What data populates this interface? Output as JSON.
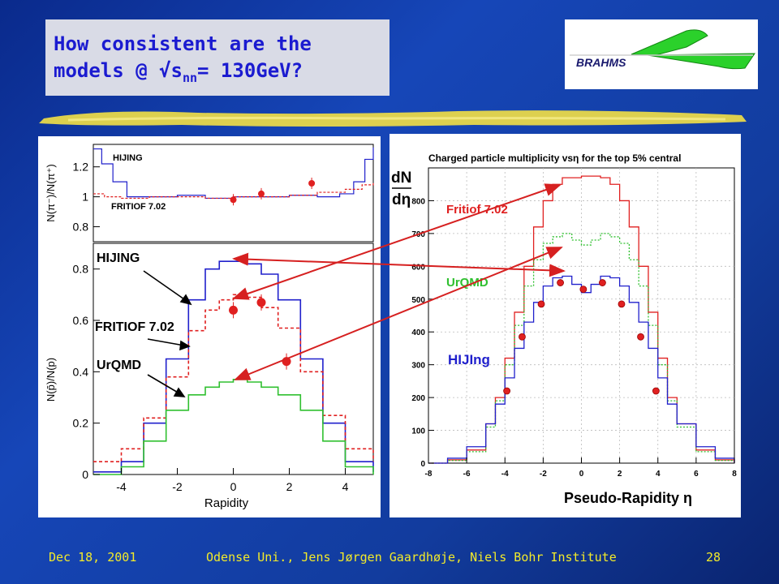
{
  "slide": {
    "title_line1": "How consistent are the",
    "title_line2_pre": "models @ ",
    "title_sqrt": "√",
    "title_s": "s",
    "title_sub": "nn",
    "title_line2_post": "= 130GeV?",
    "logo_text": "BRAHMS",
    "footer": {
      "date": "Dec 18, 2001",
      "center": "Odense Uni.,  Jens Jørgen Gaardhøje, Niels Bohr Institute",
      "page": "28"
    },
    "colors": {
      "background": "#1646b8",
      "title_text": "#1b1bd0",
      "footer_text": "#f2ea2a",
      "brush": "#e8d84a",
      "arrow": "#d62020"
    }
  },
  "chart_data": [
    {
      "type": "line",
      "panel": "left-top",
      "ylabel": "N(π⁻)/N(π⁺)",
      "xlim": [
        -5,
        5
      ],
      "ylim": [
        0.7,
        1.35
      ],
      "yticks": [
        "1.2",
        "1",
        "0.8"
      ],
      "series": [
        {
          "name": "HIJING",
          "color": "#2020cc"
        },
        {
          "name": "FRITIOF 7.02",
          "color": "#e02020"
        }
      ],
      "points": [
        {
          "x": 0,
          "y": 0.98
        },
        {
          "x": 1,
          "y": 1.02
        },
        {
          "x": 2.8,
          "y": 1.09
        }
      ]
    },
    {
      "type": "line",
      "panel": "left-bottom",
      "xlabel": "Rapidity",
      "ylabel": "N(p̄)/N(p)",
      "xlim": [
        -5,
        5
      ],
      "ylim": [
        0,
        0.9
      ],
      "xticks": [
        "-4",
        "-2",
        "0",
        "2",
        "4"
      ],
      "yticks": [
        "0",
        "0.2",
        "0.4",
        "0.6",
        "0.8"
      ],
      "series": [
        {
          "name": "HIJING",
          "color": "#2020cc",
          "x": [
            -5,
            -4,
            -3.2,
            -2.4,
            -1.6,
            -1,
            -0.5,
            0,
            0.5,
            1,
            1.6,
            2.4,
            3.2,
            4,
            5
          ],
          "y": [
            0.01,
            0.05,
            0.2,
            0.45,
            0.68,
            0.8,
            0.83,
            0.83,
            0.82,
            0.78,
            0.68,
            0.45,
            0.2,
            0.05,
            0.01
          ]
        },
        {
          "name": "FRITIOF 7.02",
          "color": "#e02020",
          "x": [
            -5,
            -4,
            -3.2,
            -2.4,
            -1.6,
            -1,
            -0.5,
            0,
            0.5,
            1,
            1.6,
            2.4,
            3.2,
            4,
            5
          ],
          "y": [
            0.05,
            0.1,
            0.22,
            0.38,
            0.56,
            0.64,
            0.68,
            0.7,
            0.69,
            0.65,
            0.57,
            0.4,
            0.23,
            0.1,
            0.05
          ]
        },
        {
          "name": "UrQMD",
          "color": "#30c030",
          "x": [
            -5,
            -4,
            -3.2,
            -2.4,
            -1.6,
            -1,
            -0.5,
            0,
            0.5,
            1,
            1.6,
            2.4,
            3.2,
            4,
            5
          ],
          "y": [
            0.0,
            0.03,
            0.13,
            0.25,
            0.31,
            0.34,
            0.36,
            0.37,
            0.36,
            0.34,
            0.31,
            0.25,
            0.13,
            0.03,
            0.0
          ]
        }
      ],
      "points": [
        {
          "x": 0,
          "y": 0.64
        },
        {
          "x": 1,
          "y": 0.67
        },
        {
          "x": 1.9,
          "y": 0.44
        }
      ]
    },
    {
      "type": "line",
      "panel": "right",
      "title": "Charged particle multiplicity vsη for the top 5% central",
      "xlabel": "Pseudo-Rapidity η",
      "ylabel_top": "dN",
      "ylabel_bottom": "dη",
      "xlim": [
        -8,
        8
      ],
      "ylim": [
        0,
        900
      ],
      "xticks": [
        "-8",
        "-6",
        "-4",
        "-2",
        "0",
        "2",
        "4",
        "6",
        "8"
      ],
      "yticks": [
        "0",
        "100",
        "200",
        "300",
        "400",
        "500",
        "600",
        "700",
        "800"
      ],
      "series": [
        {
          "name": "Fritiof 7.02",
          "color": "#e02020",
          "x": [
            -8,
            -7,
            -6,
            -5,
            -4.5,
            -4,
            -3.5,
            -3,
            -2.5,
            -2,
            -1.5,
            -1,
            0,
            1,
            1.5,
            2,
            2.5,
            3,
            3.5,
            4,
            4.5,
            5,
            6,
            7,
            8
          ],
          "y": [
            0,
            10,
            40,
            120,
            200,
            320,
            460,
            600,
            720,
            800,
            850,
            870,
            875,
            870,
            850,
            800,
            720,
            600,
            460,
            320,
            200,
            120,
            40,
            10,
            0
          ]
        },
        {
          "name": "UrQMD",
          "color": "#30c030",
          "x": [
            -8,
            -7,
            -6,
            -5,
            -4.5,
            -4,
            -3.5,
            -3,
            -2.5,
            -2,
            -1.5,
            -1,
            -0.5,
            0,
            0.5,
            1,
            1.5,
            2,
            2.5,
            3,
            3.5,
            4,
            4.5,
            5,
            6,
            7,
            8
          ],
          "y": [
            0,
            8,
            35,
            110,
            190,
            300,
            420,
            540,
            620,
            670,
            690,
            700,
            680,
            665,
            680,
            700,
            690,
            670,
            620,
            540,
            420,
            300,
            190,
            110,
            35,
            8,
            0
          ]
        },
        {
          "name": "HIJIng",
          "color": "#2020cc",
          "x": [
            -8,
            -7,
            -6,
            -5,
            -4.5,
            -4,
            -3.5,
            -3,
            -2.5,
            -2,
            -1.5,
            -1,
            -0.5,
            0,
            0.5,
            1,
            1.5,
            2,
            2.5,
            3,
            3.5,
            4,
            4.5,
            5,
            6,
            7,
            8
          ],
          "y": [
            0,
            15,
            50,
            120,
            180,
            260,
            350,
            430,
            490,
            540,
            565,
            570,
            545,
            520,
            545,
            570,
            565,
            540,
            490,
            430,
            350,
            260,
            180,
            120,
            50,
            15,
            0
          ]
        }
      ],
      "points": [
        {
          "x": -3.9,
          "y": 220
        },
        {
          "x": -3.1,
          "y": 385
        },
        {
          "x": -2.1,
          "y": 485
        },
        {
          "x": -1.1,
          "y": 550
        },
        {
          "x": 0.1,
          "y": 530
        },
        {
          "x": 1.1,
          "y": 550
        },
        {
          "x": 2.1,
          "y": 485
        },
        {
          "x": 3.1,
          "y": 385
        },
        {
          "x": 3.9,
          "y": 220
        }
      ]
    }
  ]
}
